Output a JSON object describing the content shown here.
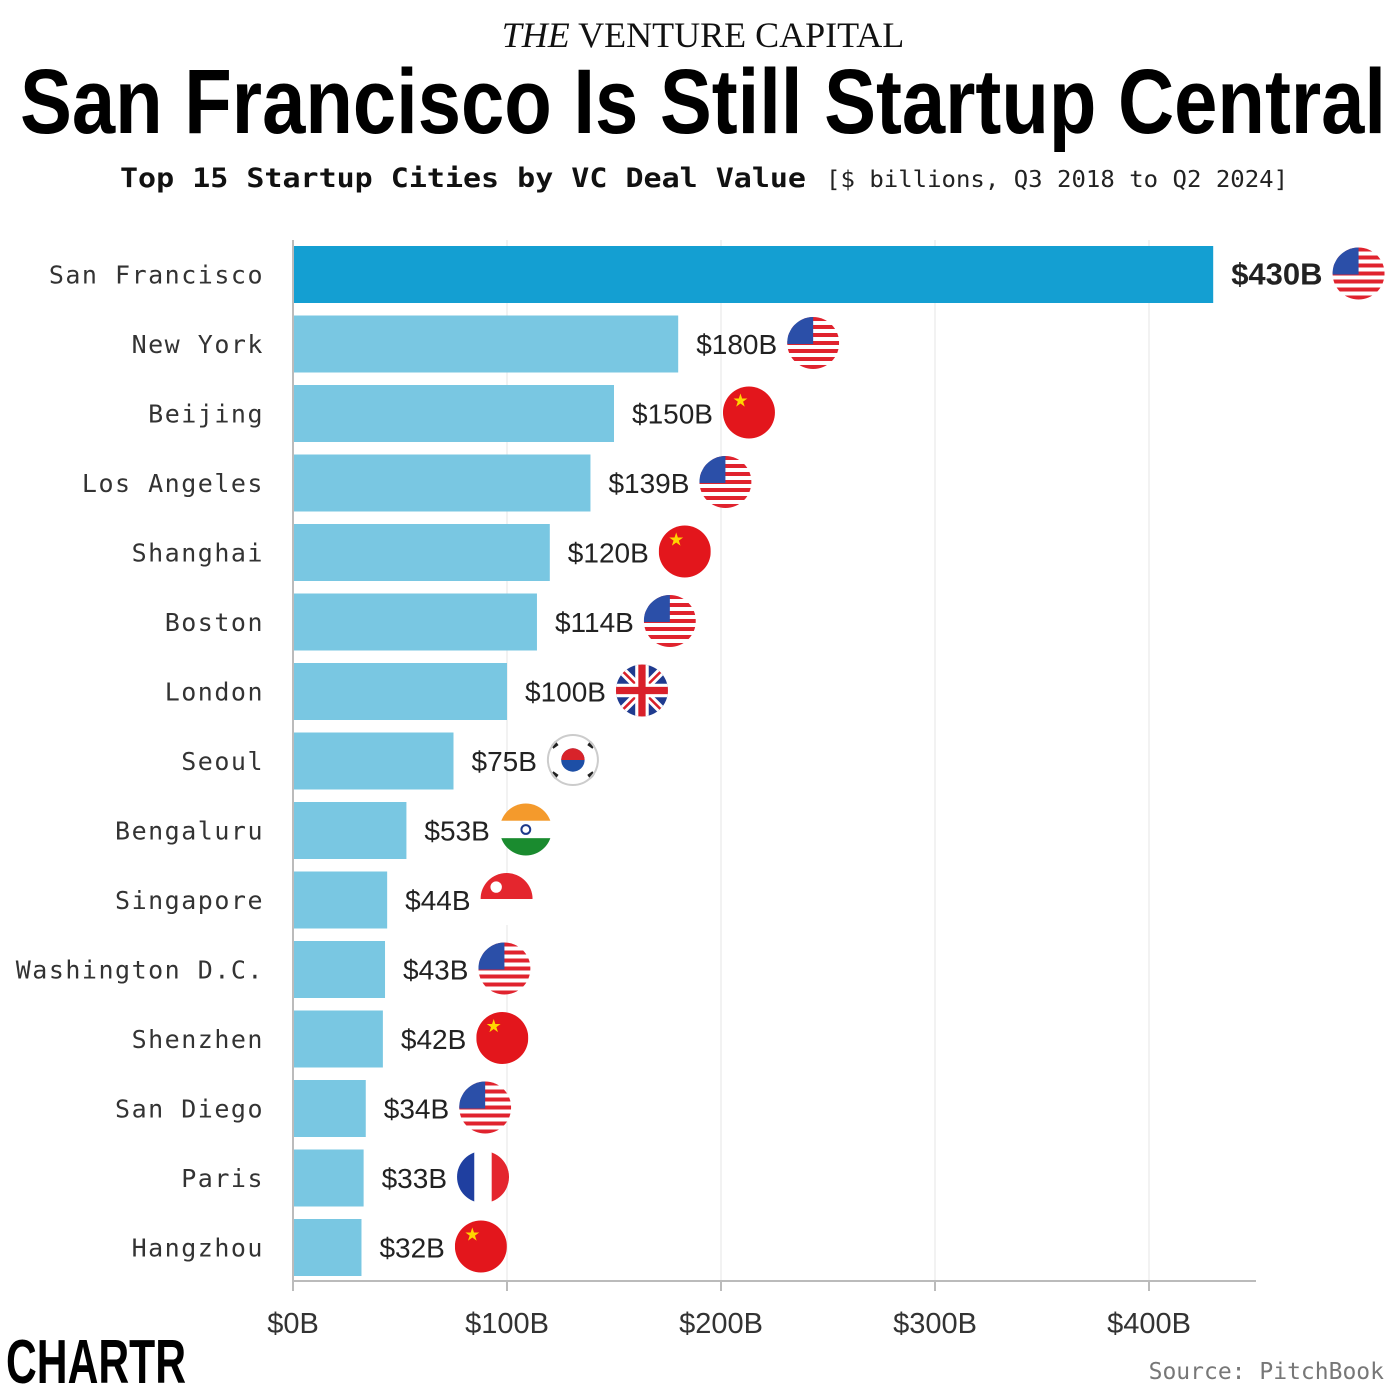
{
  "header": {
    "kicker_italic": "THE",
    "kicker_rest": "VENTURE CAPITAL",
    "title": "San Francisco Is Still Startup Central",
    "subtitle_bold": "Top 15 Startup Cities by VC Deal Value",
    "subtitle_note": "[$ billions, Q3 2018 to Q2 2024]"
  },
  "footer": {
    "logo": "CHARTR",
    "source": "Source: PitchBook"
  },
  "colors": {
    "highlight": "#149fd2",
    "bar": "#79c7e2",
    "text": "#222222"
  },
  "chart_data": {
    "type": "bar",
    "orientation": "horizontal",
    "categories": [
      "San Francisco",
      "New York",
      "Beijing",
      "Los Angeles",
      "Shanghai",
      "Boston",
      "London",
      "Seoul",
      "Bengaluru",
      "Singapore",
      "Washington D.C.",
      "Shenzhen",
      "San Diego",
      "Paris",
      "Hangzhou"
    ],
    "values": [
      430,
      180,
      150,
      139,
      120,
      114,
      100,
      75,
      53,
      44,
      43,
      42,
      34,
      33,
      32
    ],
    "data_labels": [
      "$430B",
      "$180B",
      "$150B",
      "$139B",
      "$120B",
      "$114B",
      "$100B",
      "$75B",
      "$53B",
      "$44B",
      "$43B",
      "$42B",
      "$34B",
      "$33B",
      "$32B"
    ],
    "flags": [
      "us",
      "us",
      "cn",
      "us",
      "cn",
      "us",
      "gb",
      "kr",
      "in",
      "sg",
      "us",
      "cn",
      "us",
      "fr",
      "cn"
    ],
    "highlighted": [
      "San Francisco"
    ],
    "xlim": [
      0,
      450
    ],
    "xticks": [
      0,
      100,
      200,
      300,
      400
    ],
    "xtick_labels": [
      "$0B",
      "$100B",
      "$200B",
      "$300B",
      "$400B"
    ],
    "grid": "vertical",
    "xlabel": "",
    "ylabel": ""
  }
}
